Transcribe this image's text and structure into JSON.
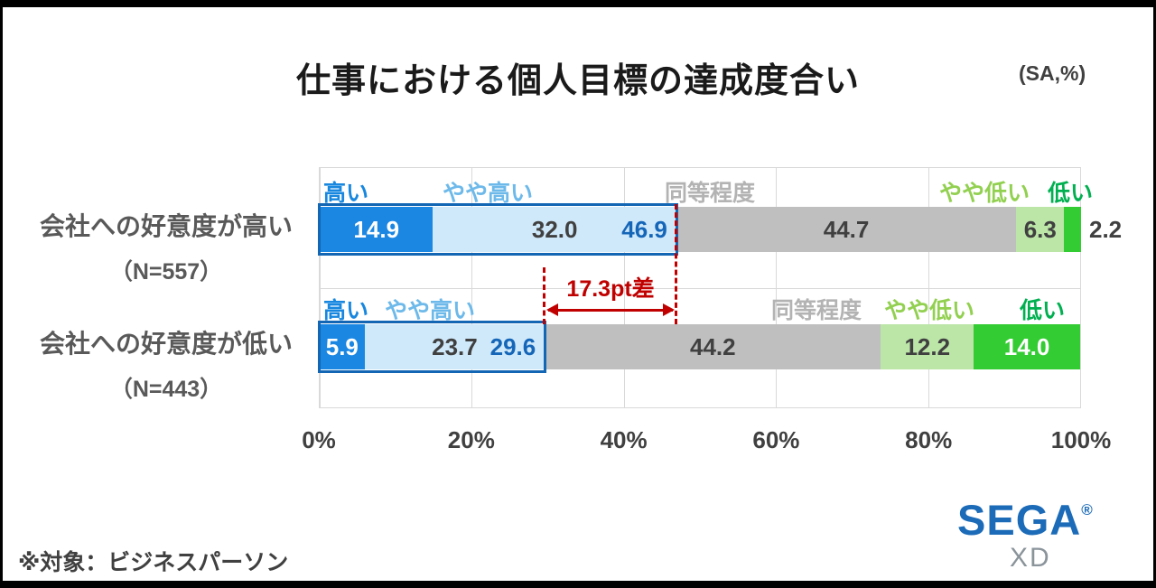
{
  "footer": {
    "footnote": "※対象：ビジネスパーソン"
  },
  "logo": {
    "brand": "SEGA",
    "registered": "®",
    "sub": "XD"
  },
  "chart_data": {
    "type": "bar",
    "stacked": true,
    "orientation": "horizontal",
    "title": "仕事における個人目標の達成度合い",
    "unit_note": "(SA,%)",
    "x_ticks": [
      "0%",
      "20%",
      "40%",
      "60%",
      "80%",
      "100%"
    ],
    "xlim": [
      0,
      100
    ],
    "grid": true,
    "legend_position": "above-bars",
    "series": [
      {
        "name": "高い",
        "fill": "#1b87e2",
        "label_color": "#1787df",
        "text": "#ffffff"
      },
      {
        "name": "やや高い",
        "fill": "#cfe9fa",
        "label_color": "#6db9ea",
        "text": "#404040"
      },
      {
        "name": "同等程度",
        "fill": "#bfbfbf",
        "label_color": "#b3b3b3",
        "text": "#404040"
      },
      {
        "name": "やや低い",
        "fill": "#bce5a8",
        "label_color": "#92d050",
        "text": "#404040"
      },
      {
        "name": "低い",
        "fill": "#33cc33",
        "label_color": "#00b050",
        "text": "#ffffff"
      }
    ],
    "rows": [
      {
        "category": "会社への好意度が高い",
        "n_label": "（N=557）",
        "values": [
          14.9,
          32.0,
          44.7,
          6.3,
          2.2
        ],
        "labels": [
          "14.9",
          "32.0",
          "44.7",
          "6.3",
          "2.2"
        ],
        "cumulative_positive": "46.9"
      },
      {
        "category": "会社への好意度が低い",
        "n_label": "（N=443）",
        "values": [
          5.9,
          23.7,
          44.2,
          12.2,
          14.0
        ],
        "labels": [
          "5.9",
          "23.7",
          "44.2",
          "12.2",
          "14.0"
        ],
        "cumulative_positive": "29.6"
      }
    ],
    "annotation": {
      "text": "17.3pt差",
      "from_pct": 29.6,
      "to_pct": 46.9,
      "color": "#c00000"
    },
    "highlight_box_color": "#1266b4"
  }
}
